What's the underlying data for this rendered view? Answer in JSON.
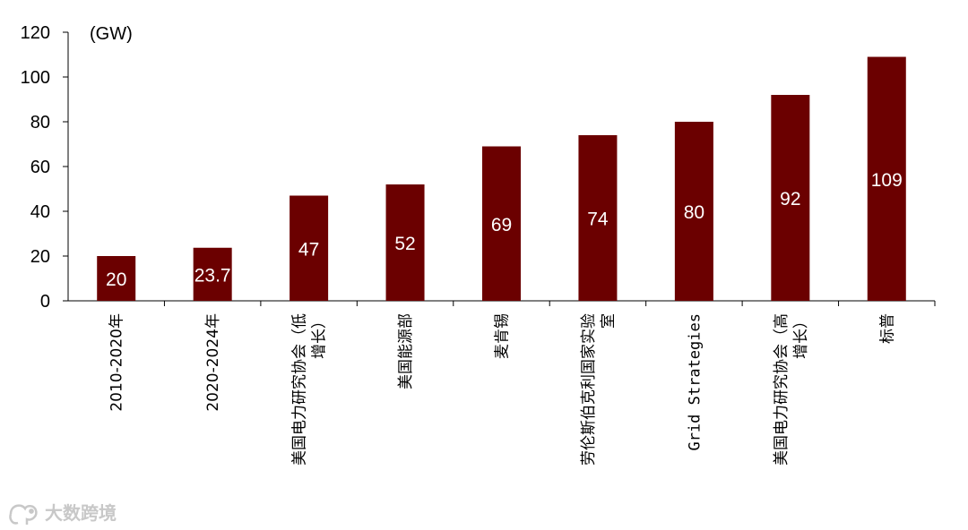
{
  "chart_data": {
    "type": "bar",
    "unit": "(GW)",
    "categories": [
      [
        "2010-2020年"
      ],
      [
        "2020-2024年"
      ],
      [
        "美国电力研究协会（低",
        "增长）"
      ],
      [
        "美国能源部"
      ],
      [
        "麦肯锡"
      ],
      [
        "劳伦斯伯克利国家实验",
        "室"
      ],
      [
        "Grid Strategies"
      ],
      [
        "美国电力研究协会（高",
        "增长）"
      ],
      [
        "标普"
      ]
    ],
    "values": [
      20,
      23.7,
      47,
      52,
      69,
      74,
      80,
      92,
      109
    ],
    "value_labels": [
      "20",
      "23.7",
      "47",
      "52",
      "69",
      "74",
      "80",
      "92",
      "109"
    ],
    "ylim": [
      0,
      120
    ],
    "yticks": [
      "0",
      "20",
      "40",
      "60",
      "80",
      "100",
      "120"
    ],
    "bar_color": "#6b0000",
    "label_color": "#ffffff",
    "grid": false,
    "legend": "none"
  },
  "watermark": {
    "text": "大数跨境",
    "icon": "elephant-logo-icon"
  }
}
